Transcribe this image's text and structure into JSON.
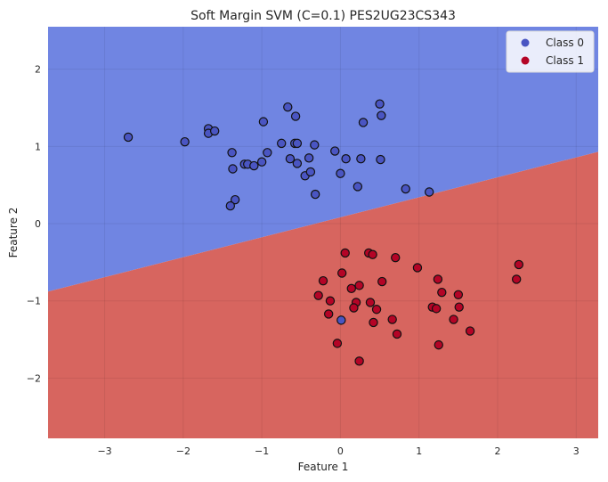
{
  "chart_data": {
    "type": "scatter",
    "title": "Soft Margin SVM (C=0.1) PES2UG23CS343",
    "xlabel": "Feature 1",
    "ylabel": "Feature 2",
    "xlim": [
      -3.72,
      3.28
    ],
    "ylim": [
      -2.78,
      2.55
    ],
    "xticks": [
      -3,
      -2,
      -1,
      0,
      1,
      2,
      3
    ],
    "xtick_labels": [
      "−3",
      "−2",
      "−1",
      "0",
      "1",
      "2",
      "3"
    ],
    "yticks": [
      -2,
      -1,
      0,
      1,
      2
    ],
    "ytick_labels": [
      "−2",
      "−1",
      "0",
      "1",
      "2"
    ],
    "grid": true,
    "legend_position": "top-right",
    "decision_boundary": {
      "x": [
        -3.72,
        3.28
      ],
      "y": [
        -0.88,
        0.93
      ]
    },
    "region_colors": {
      "class_0": "#7085e2",
      "class_1": "#d7655f"
    },
    "series": [
      {
        "name": "Class 0",
        "color": "#4a55c2",
        "points": [
          [
            -2.7,
            1.12
          ],
          [
            -1.98,
            1.06
          ],
          [
            -1.68,
            1.23
          ],
          [
            -1.68,
            1.17
          ],
          [
            -1.6,
            1.2
          ],
          [
            -1.38,
            0.92
          ],
          [
            -1.37,
            0.71
          ],
          [
            -1.22,
            0.77
          ],
          [
            -1.18,
            0.77
          ],
          [
            -1.1,
            0.75
          ],
          [
            -1.0,
            0.8
          ],
          [
            -0.98,
            1.32
          ],
          [
            -0.93,
            0.92
          ],
          [
            -0.75,
            1.04
          ],
          [
            -0.67,
            1.51
          ],
          [
            -0.64,
            0.84
          ],
          [
            -0.58,
            1.04
          ],
          [
            -0.57,
            1.39
          ],
          [
            -0.55,
            1.04
          ],
          [
            -0.55,
            0.78
          ],
          [
            -0.45,
            0.62
          ],
          [
            -0.38,
            0.67
          ],
          [
            -0.33,
            1.02
          ],
          [
            -0.32,
            0.38
          ],
          [
            -0.4,
            0.85
          ],
          [
            -0.07,
            0.94
          ],
          [
            0.0,
            0.65
          ],
          [
            0.07,
            0.84
          ],
          [
            0.22,
            0.48
          ],
          [
            0.26,
            0.84
          ],
          [
            0.29,
            1.31
          ],
          [
            0.5,
            1.55
          ],
          [
            0.52,
            1.4
          ],
          [
            0.51,
            0.83
          ],
          [
            0.83,
            0.45
          ],
          [
            1.13,
            0.41
          ],
          [
            -1.34,
            0.31
          ],
          [
            -1.4,
            0.23
          ],
          [
            0.01,
            -1.25
          ]
        ]
      },
      {
        "name": "Class 1",
        "color": "#b40426",
        "points": [
          [
            0.06,
            -0.38
          ],
          [
            0.36,
            -0.38
          ],
          [
            0.41,
            -0.4
          ],
          [
            0.7,
            -0.44
          ],
          [
            0.98,
            -0.57
          ],
          [
            0.02,
            -0.64
          ],
          [
            -0.22,
            -0.74
          ],
          [
            0.53,
            -0.75
          ],
          [
            0.24,
            -0.8
          ],
          [
            0.14,
            -0.84
          ],
          [
            -0.28,
            -0.93
          ],
          [
            -0.13,
            -1.0
          ],
          [
            0.38,
            -1.02
          ],
          [
            0.2,
            -1.02
          ],
          [
            0.17,
            -1.09
          ],
          [
            0.46,
            -1.11
          ],
          [
            -0.15,
            -1.17
          ],
          [
            1.17,
            -1.08
          ],
          [
            1.22,
            -1.1
          ],
          [
            1.24,
            -0.72
          ],
          [
            1.29,
            -0.89
          ],
          [
            1.5,
            -0.92
          ],
          [
            1.51,
            -1.08
          ],
          [
            1.44,
            -1.24
          ],
          [
            0.66,
            -1.24
          ],
          [
            0.42,
            -1.28
          ],
          [
            0.72,
            -1.43
          ],
          [
            1.65,
            -1.39
          ],
          [
            1.25,
            -1.57
          ],
          [
            -0.04,
            -1.55
          ],
          [
            0.24,
            -1.78
          ],
          [
            2.27,
            -0.53
          ],
          [
            2.24,
            -0.72
          ]
        ]
      }
    ]
  }
}
